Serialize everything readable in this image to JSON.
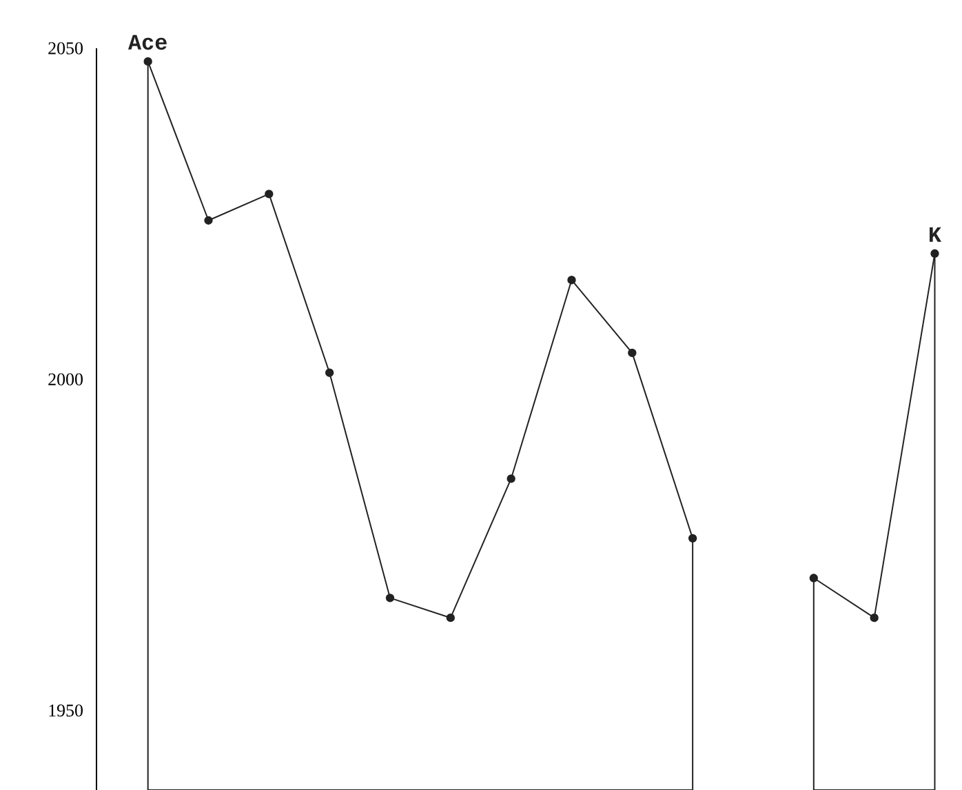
{
  "chart_data": {
    "type": "line",
    "categories": [
      null,
      null,
      null,
      null,
      null,
      null,
      null,
      null,
      null,
      null,
      null,
      null,
      null,
      null
    ],
    "series": [
      {
        "name": "Ace",
        "color": "#222222",
        "values": [
          2048,
          2024,
          2028,
          2001,
          1967,
          1964,
          1985,
          2015,
          2004,
          1976,
          null,
          null,
          null,
          null
        ]
      },
      {
        "name": "K",
        "color": "#222222",
        "values": [
          null,
          null,
          null,
          null,
          null,
          null,
          null,
          null,
          null,
          null,
          null,
          1970,
          1964,
          2019
        ]
      }
    ],
    "ylim": [
      1938,
      2050
    ],
    "yticks": [
      1950,
      2000,
      2050
    ],
    "marker": "circle",
    "line_style": "solid"
  }
}
